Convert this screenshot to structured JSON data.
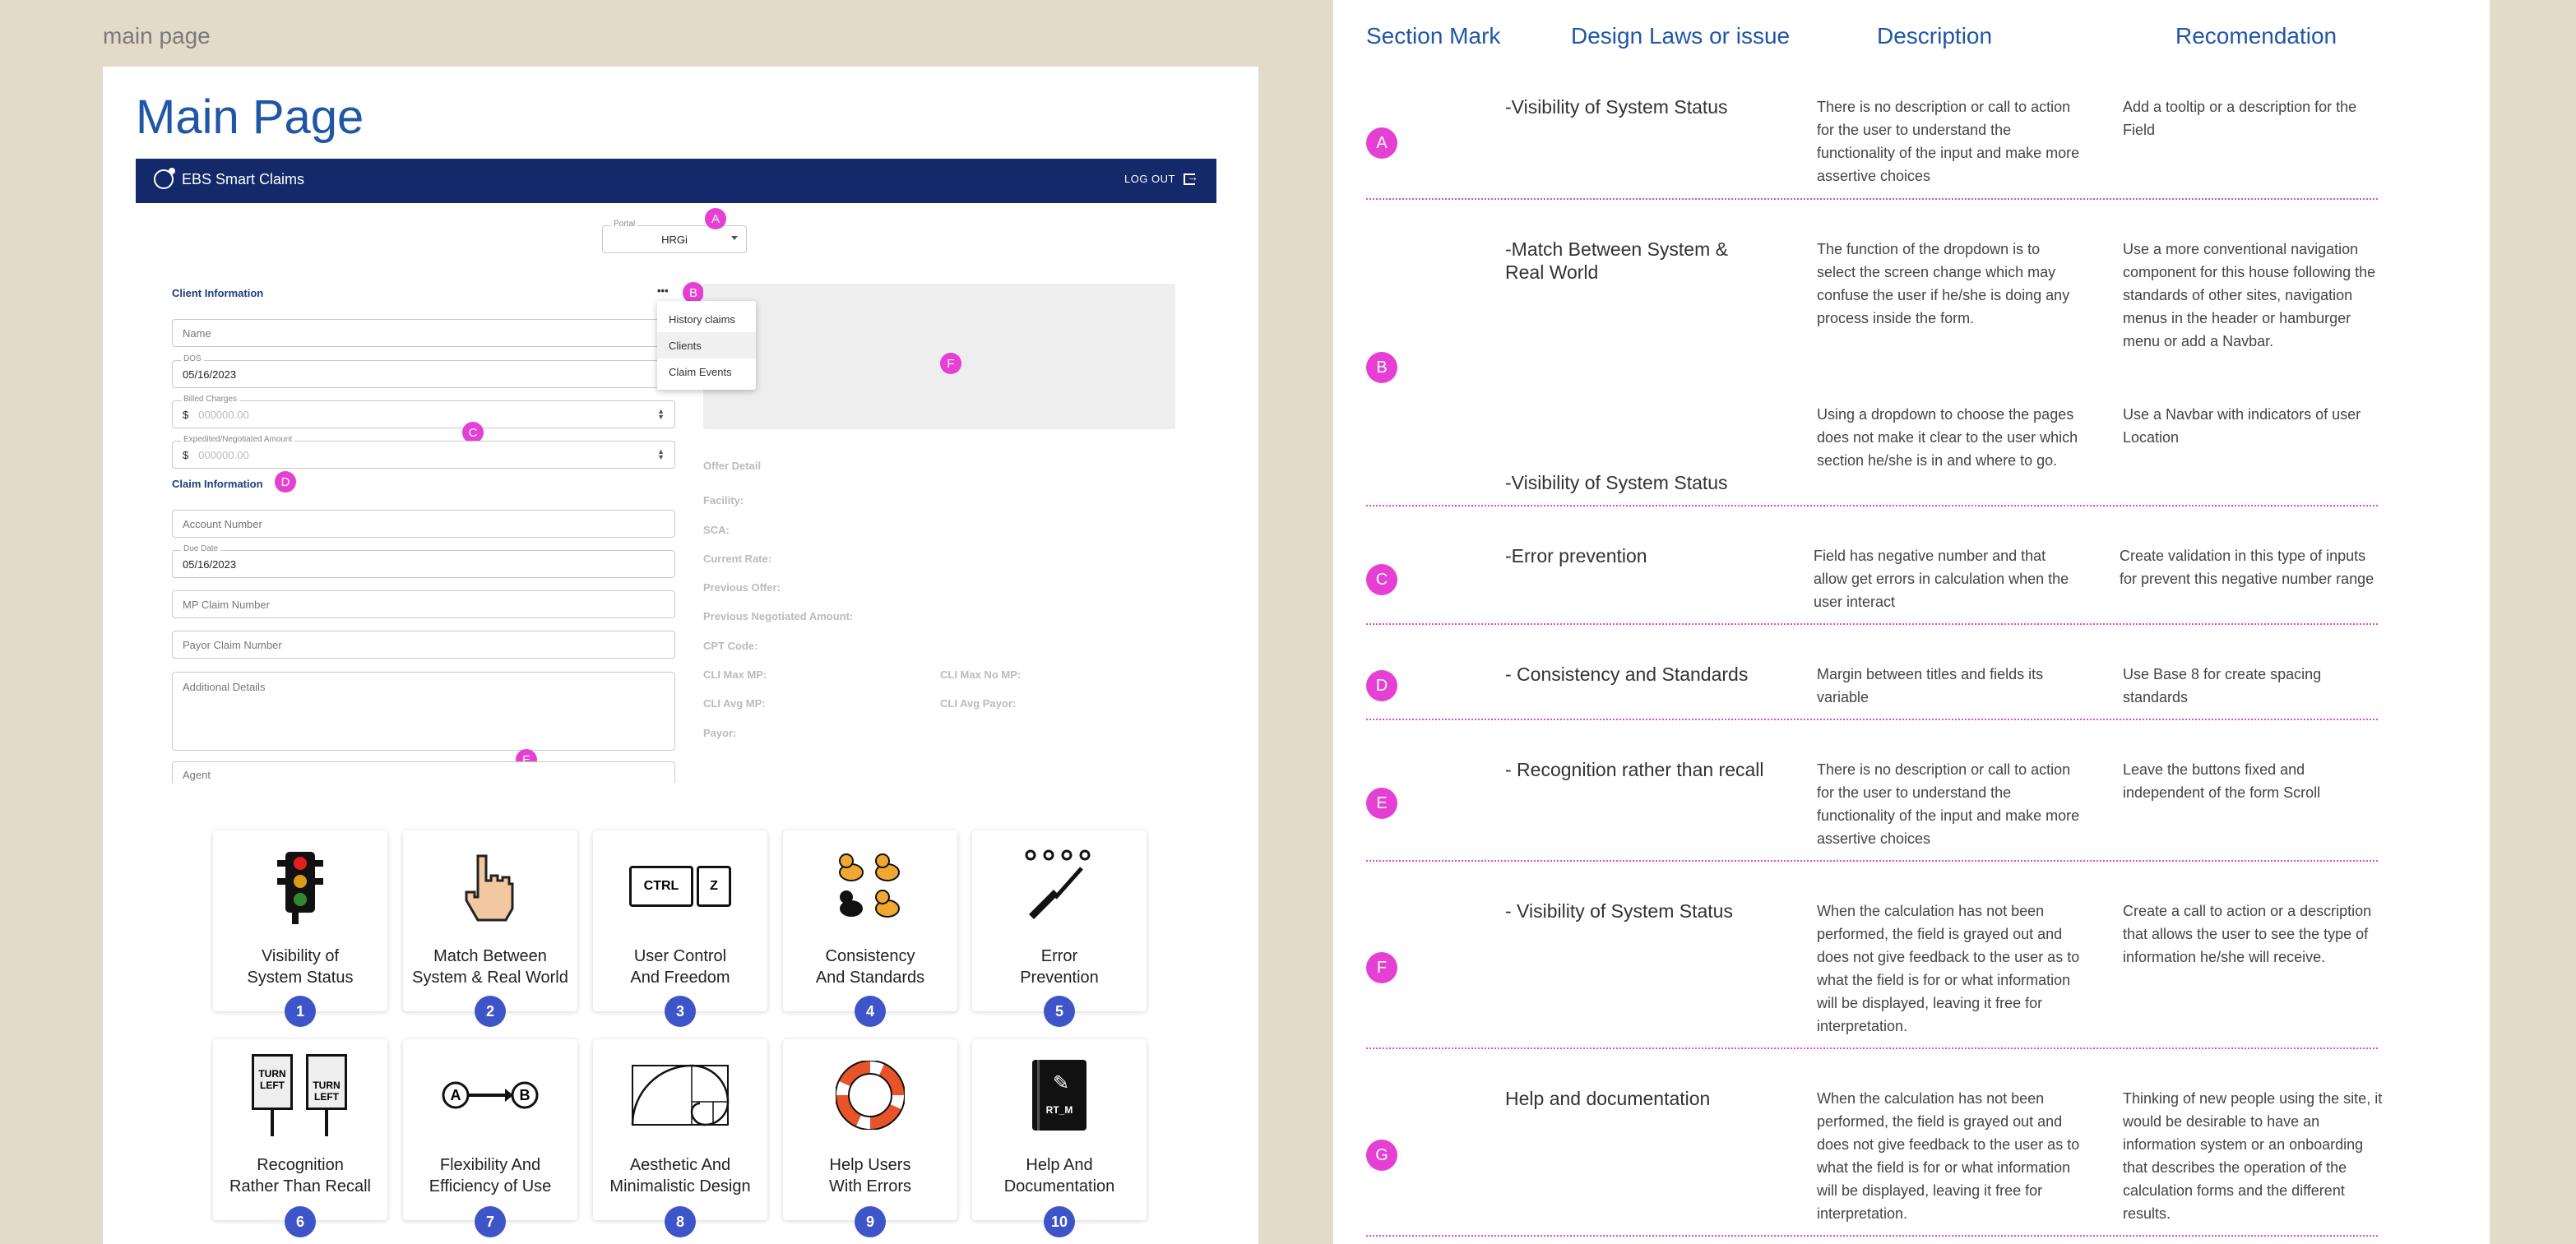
{
  "frame_label": "main page",
  "main": {
    "title": "Main Page",
    "navbar": {
      "brand": "EBS Smart Claims",
      "logout": "LOG OUT"
    },
    "portal": {
      "label": "Portal",
      "value": "HRGi"
    },
    "client_info": {
      "heading": "Client Information",
      "more": "•••",
      "name_placeholder": "Name",
      "dos_label": "DOS",
      "dos_value": "05/16/2023",
      "billed_label": "Billed Charges",
      "billed_prefix": "$",
      "billed_placeholder": "000000.00",
      "expedited_label": "Expedited/Negotiated Amount",
      "expedited_prefix": "$",
      "expedited_placeholder": "000000.00"
    },
    "dropdown": [
      "History claims",
      "Clients",
      "Claim Events"
    ],
    "claim_info": {
      "heading": "Claim Information",
      "account_placeholder": "Account Number",
      "due_label": "Due Date",
      "due_value": "05/16/2023",
      "mp_placeholder": "MP Claim Number",
      "payor_placeholder": "Payor Claim Number",
      "details_placeholder": "Additional Details",
      "agent_placeholder": "Agent"
    },
    "offer": {
      "heading": "Offer Detail",
      "facility": "Facility:",
      "sca": "SCA:",
      "current_rate": "Current Rate:",
      "previous_offer": "Previous Offer:",
      "previous_negotiated": "Previous Negotiated Amount:",
      "cpt": "CPT Code:",
      "cli_max_mp": "CLI Max MP:",
      "cli_max_no_mp": "CLI Max No MP:",
      "cli_avg_mp": "CLI Avg MP:",
      "cli_avg_payor": "CLI Avg Payor:",
      "payor": "Payor:"
    },
    "markers": {
      "a": "A",
      "b": "B",
      "c": "C",
      "d": "D",
      "e": "E",
      "f": "F"
    },
    "heuristics": [
      {
        "line1": "Visibility of",
        "line2": "System Status",
        "num": "1",
        "icon": "traffic-light-icon"
      },
      {
        "line1": "Match Between",
        "line2": "System & Real World",
        "num": "2",
        "icon": "pointing-hand-icon"
      },
      {
        "line1": "User Control",
        "line2": "And Freedom",
        "num": "3",
        "icon": "ctrl-z-icon"
      },
      {
        "line1": "Consistency",
        "line2": "And Standards",
        "num": "4",
        "icon": "ducks-icon"
      },
      {
        "line1": "Error",
        "line2": "Prevention",
        "num": "5",
        "icon": "screwdriver-icon"
      },
      {
        "line1": "Recognition",
        "line2": "Rather Than Recall",
        "num": "6",
        "icon": "turn-left-signs-icon"
      },
      {
        "line1": "Flexibility And",
        "line2": "Efficiency of Use",
        "num": "7",
        "icon": "a-to-b-icon"
      },
      {
        "line1": "Aesthetic And",
        "line2": "Minimalistic Design",
        "num": "8",
        "icon": "golden-spiral-icon"
      },
      {
        "line1": "Help Users",
        "line2": "With Errors",
        "num": "9",
        "icon": "life-ring-icon"
      },
      {
        "line1": "Help And",
        "line2": "Documentation",
        "num": "10",
        "icon": "manual-book-icon"
      }
    ],
    "sign_text": {
      "l1": "TURN",
      "l2": "LEFT"
    },
    "keys": {
      "ctrl": "CTRL",
      "z": "Z"
    },
    "book_text": "RT_M"
  },
  "table": {
    "headers": {
      "mark": "Section Mark",
      "law": "Design Laws or issue",
      "desc": "Description",
      "rec": "Recomendation"
    },
    "rows": [
      {
        "mark": "A",
        "law": "-Visibility of  System Status",
        "desc": "There is no description or call to action for the user to understand the functionality of the input and make more assertive choices",
        "rec": "Add a tooltip or  a description for the Field"
      },
      {
        "mark": "B",
        "law": "-Match Between System & Real World",
        "desc": "The function of the dropdown is to select the screen change which may confuse the user if he/she is doing any process inside the form.",
        "rec": "Use a more conventional navigation component for this house following the standards of other sites, navigation menus in the header or hamburger menu or add a Navbar.",
        "law2": "-Visibility of  System Status",
        "desc2": "Using a dropdown to choose the pages does not make it clear to the user which section he/she is in and where to go.",
        "rec2": "Use a Navbar with indicators of user Location"
      },
      {
        "mark": "C",
        "law": "-Error prevention",
        "desc": "Field has negative number and that allow  get errors in calculation when the user interact",
        "rec": "Create validation in this type of inputs for prevent this negative number range"
      },
      {
        "mark": "D",
        "law": "- Consistency  and Standards",
        "desc": "Margin between titles and fields its variable",
        "rec": "Use Base 8 for create spacing standards"
      },
      {
        "mark": "E",
        "law": "- Recognition rather than recall",
        "desc": "There is no description or call to action for the user to understand the functionality of the input and make more assertive choices",
        "rec": "Leave the buttons fixed and independent of the form Scroll"
      },
      {
        "mark": "F",
        "law": "- Visibility of  System Status",
        "desc": "When the calculation has not been performed, the field is grayed out and does not give feedback to the user as to what the field is for or what information will be displayed, leaving it free for interpretation.",
        "rec": "Create a call to action or a description that allows the user to see the type of information he/she will receive."
      },
      {
        "mark": "G",
        "law": "Help and documentation",
        "desc": "When the calculation has not been performed, the field is grayed out and does not give feedback to the user as to what the field is for or what information will be displayed, leaving it free for interpretation.",
        "rec": "Thinking of new people using the site, it would be desirable to have an information system or an onboarding that describes the operation of the calculation forms and the different results."
      }
    ]
  },
  "colors": {
    "accent": "#1f56a6",
    "navbar": "#13296a",
    "marker": "#e53fd4",
    "badge": "#3d55c9",
    "background": "#e3dac9"
  }
}
